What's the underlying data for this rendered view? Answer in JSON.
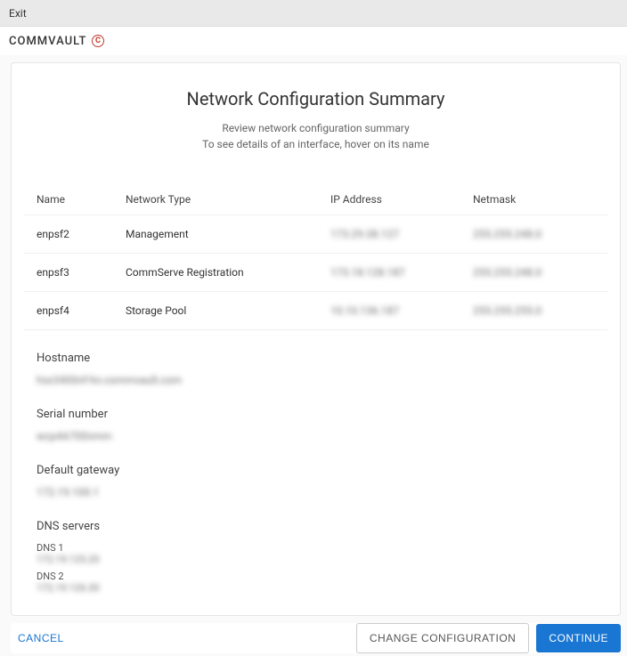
{
  "topbar": {
    "exit": "Exit"
  },
  "brand": {
    "name": "COMMVAULT",
    "icon_glyph": "C"
  },
  "page": {
    "title": "Network Configuration Summary",
    "subtitle_line1": "Review network configuration summary",
    "subtitle_line2": "To see details of an interface, hover on its name"
  },
  "table": {
    "headers": {
      "name": "Name",
      "type": "Network Type",
      "ip": "IP Address",
      "netmask": "Netmask"
    },
    "rows": [
      {
        "name": "enpsf2",
        "type": "Management",
        "ip": "173.29.38.127",
        "netmask": "255.255.248.0"
      },
      {
        "name": "enpsf3",
        "type": "CommServe Registration",
        "ip": "173.18.128.187",
        "netmask": "255.255.248.0"
      },
      {
        "name": "enpsf4",
        "type": "Storage Pool",
        "ip": "10.10.136.187",
        "netmask": "255.255.255.0"
      }
    ]
  },
  "hostname": {
    "label": "Hostname",
    "value": "hsx3400nf-hn.commvault.com"
  },
  "serial": {
    "label": "Serial number",
    "value": "wcp4A700nmm"
  },
  "gateway": {
    "label": "Default gateway",
    "value": "172.19.100.1"
  },
  "dns": {
    "label": "DNS servers",
    "entries": [
      {
        "label": "DNS 1",
        "value": "172.19.125.20"
      },
      {
        "label": "DNS 2",
        "value": "172.19.126.30"
      }
    ]
  },
  "footer": {
    "cancel": "Cancel",
    "change": "Change Configuration",
    "continue": "Continue"
  },
  "colors": {
    "primary": "#1976d2",
    "brand_accent": "#c0392b",
    "border": "#e5e5e5",
    "text": "#333333",
    "muted": "#666666"
  }
}
